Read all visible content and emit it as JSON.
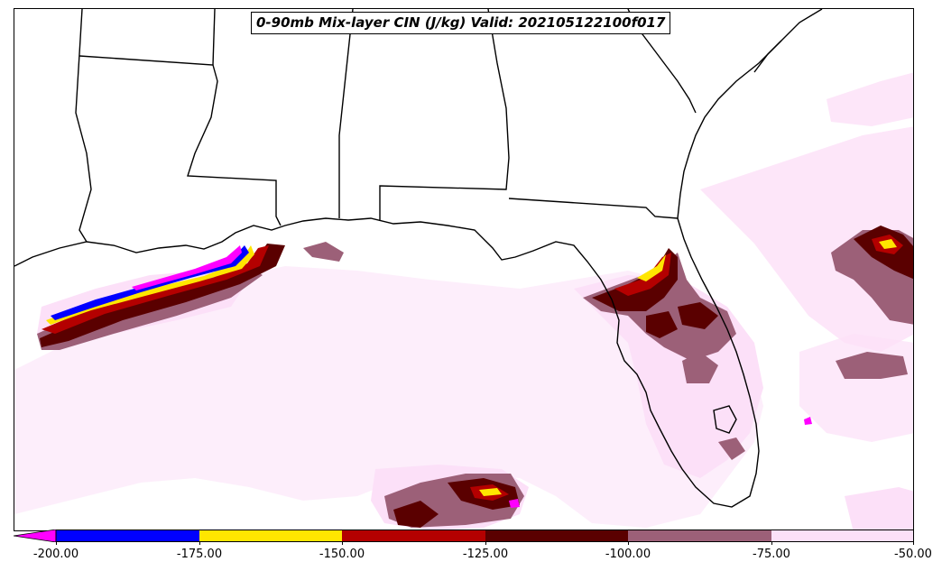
{
  "title": "0-90mb Mix-layer CIN (J/kg) Valid: 202105122100f017",
  "colorbar": {
    "ticks": [
      "-200.00",
      "-175.00",
      "-150.00",
      "-125.00",
      "-100.00",
      "-75.00",
      "-50.00"
    ],
    "bins": [
      {
        "range": "< -200",
        "color": "#ff00ff"
      },
      {
        "range": "-200 to -175",
        "color": "#0000ff"
      },
      {
        "range": "-175 to -150",
        "color": "#ffe600"
      },
      {
        "range": "-150 to -125",
        "color": "#b40000"
      },
      {
        "range": "-125 to -100",
        "color": "#5a0000"
      },
      {
        "range": "-100 to -75",
        "color": "#9c6078"
      },
      {
        "range": "-75 to -50",
        "color": "#fce0f8"
      }
    ]
  },
  "map": {
    "region": "Gulf of Mexico / Southeast US",
    "variable": "CIN",
    "units": "J/kg"
  }
}
